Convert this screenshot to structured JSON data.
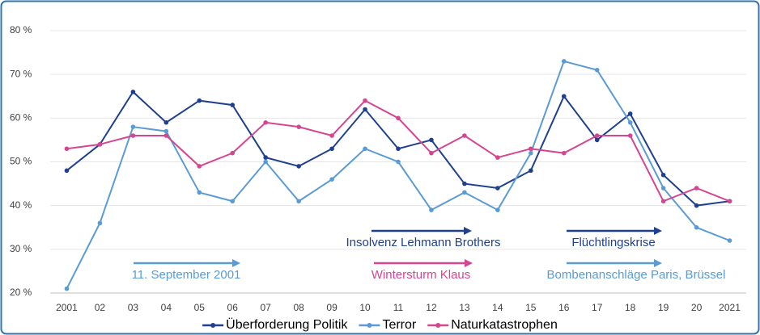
{
  "chart_data": {
    "type": "line",
    "categories": [
      "2001",
      "02",
      "03",
      "04",
      "05",
      "06",
      "07",
      "08",
      "09",
      "10",
      "11",
      "12",
      "13",
      "14",
      "15",
      "16",
      "17",
      "18",
      "19",
      "20",
      "2021"
    ],
    "series": [
      {
        "name": "Überforderung Politik",
        "color": "#1f3f8f",
        "values": [
          48,
          54,
          66,
          59,
          64,
          63,
          51,
          49,
          53,
          62,
          53,
          55,
          45,
          44,
          48,
          65,
          55,
          61,
          47,
          40,
          41
        ]
      },
      {
        "name": "Terror",
        "color": "#5b9bd5",
        "values": [
          21,
          36,
          58,
          57,
          43,
          41,
          50,
          41,
          46,
          53,
          50,
          39,
          43,
          39,
          52,
          73,
          71,
          59,
          44,
          35,
          32
        ]
      },
      {
        "name": "Naturkatastrophen",
        "color": "#d6458f",
        "values": [
          53,
          54,
          56,
          56,
          49,
          52,
          59,
          58,
          56,
          64,
          60,
          52,
          56,
          51,
          53,
          52,
          56,
          56,
          41,
          44,
          41
        ]
      }
    ],
    "ylim": [
      20,
      80
    ],
    "yticks": [
      {
        "value": 20,
        "label": "20 %"
      },
      {
        "value": 30,
        "label": "30 %"
      },
      {
        "value": 40,
        "label": "40 %"
      },
      {
        "value": 50,
        "label": "50 %"
      },
      {
        "value": 60,
        "label": "60 %"
      },
      {
        "value": 70,
        "label": "70 %"
      },
      {
        "value": 80,
        "label": "80 %"
      }
    ],
    "grid": true,
    "legend": "bottom",
    "annotations": [
      {
        "text": "Insolvenz Lehmann Brothers",
        "color": "#1f3f8f"
      },
      {
        "text": "Flüchtlingskrise",
        "color": "#1f3f8f"
      },
      {
        "text": "11. September 2001",
        "color": "#5b9bd5"
      },
      {
        "text": "Wintersturm Klaus",
        "color": "#d6458f"
      },
      {
        "text": "Bombenanschläge Paris, Brüssel",
        "color": "#5b9bd5"
      }
    ]
  }
}
